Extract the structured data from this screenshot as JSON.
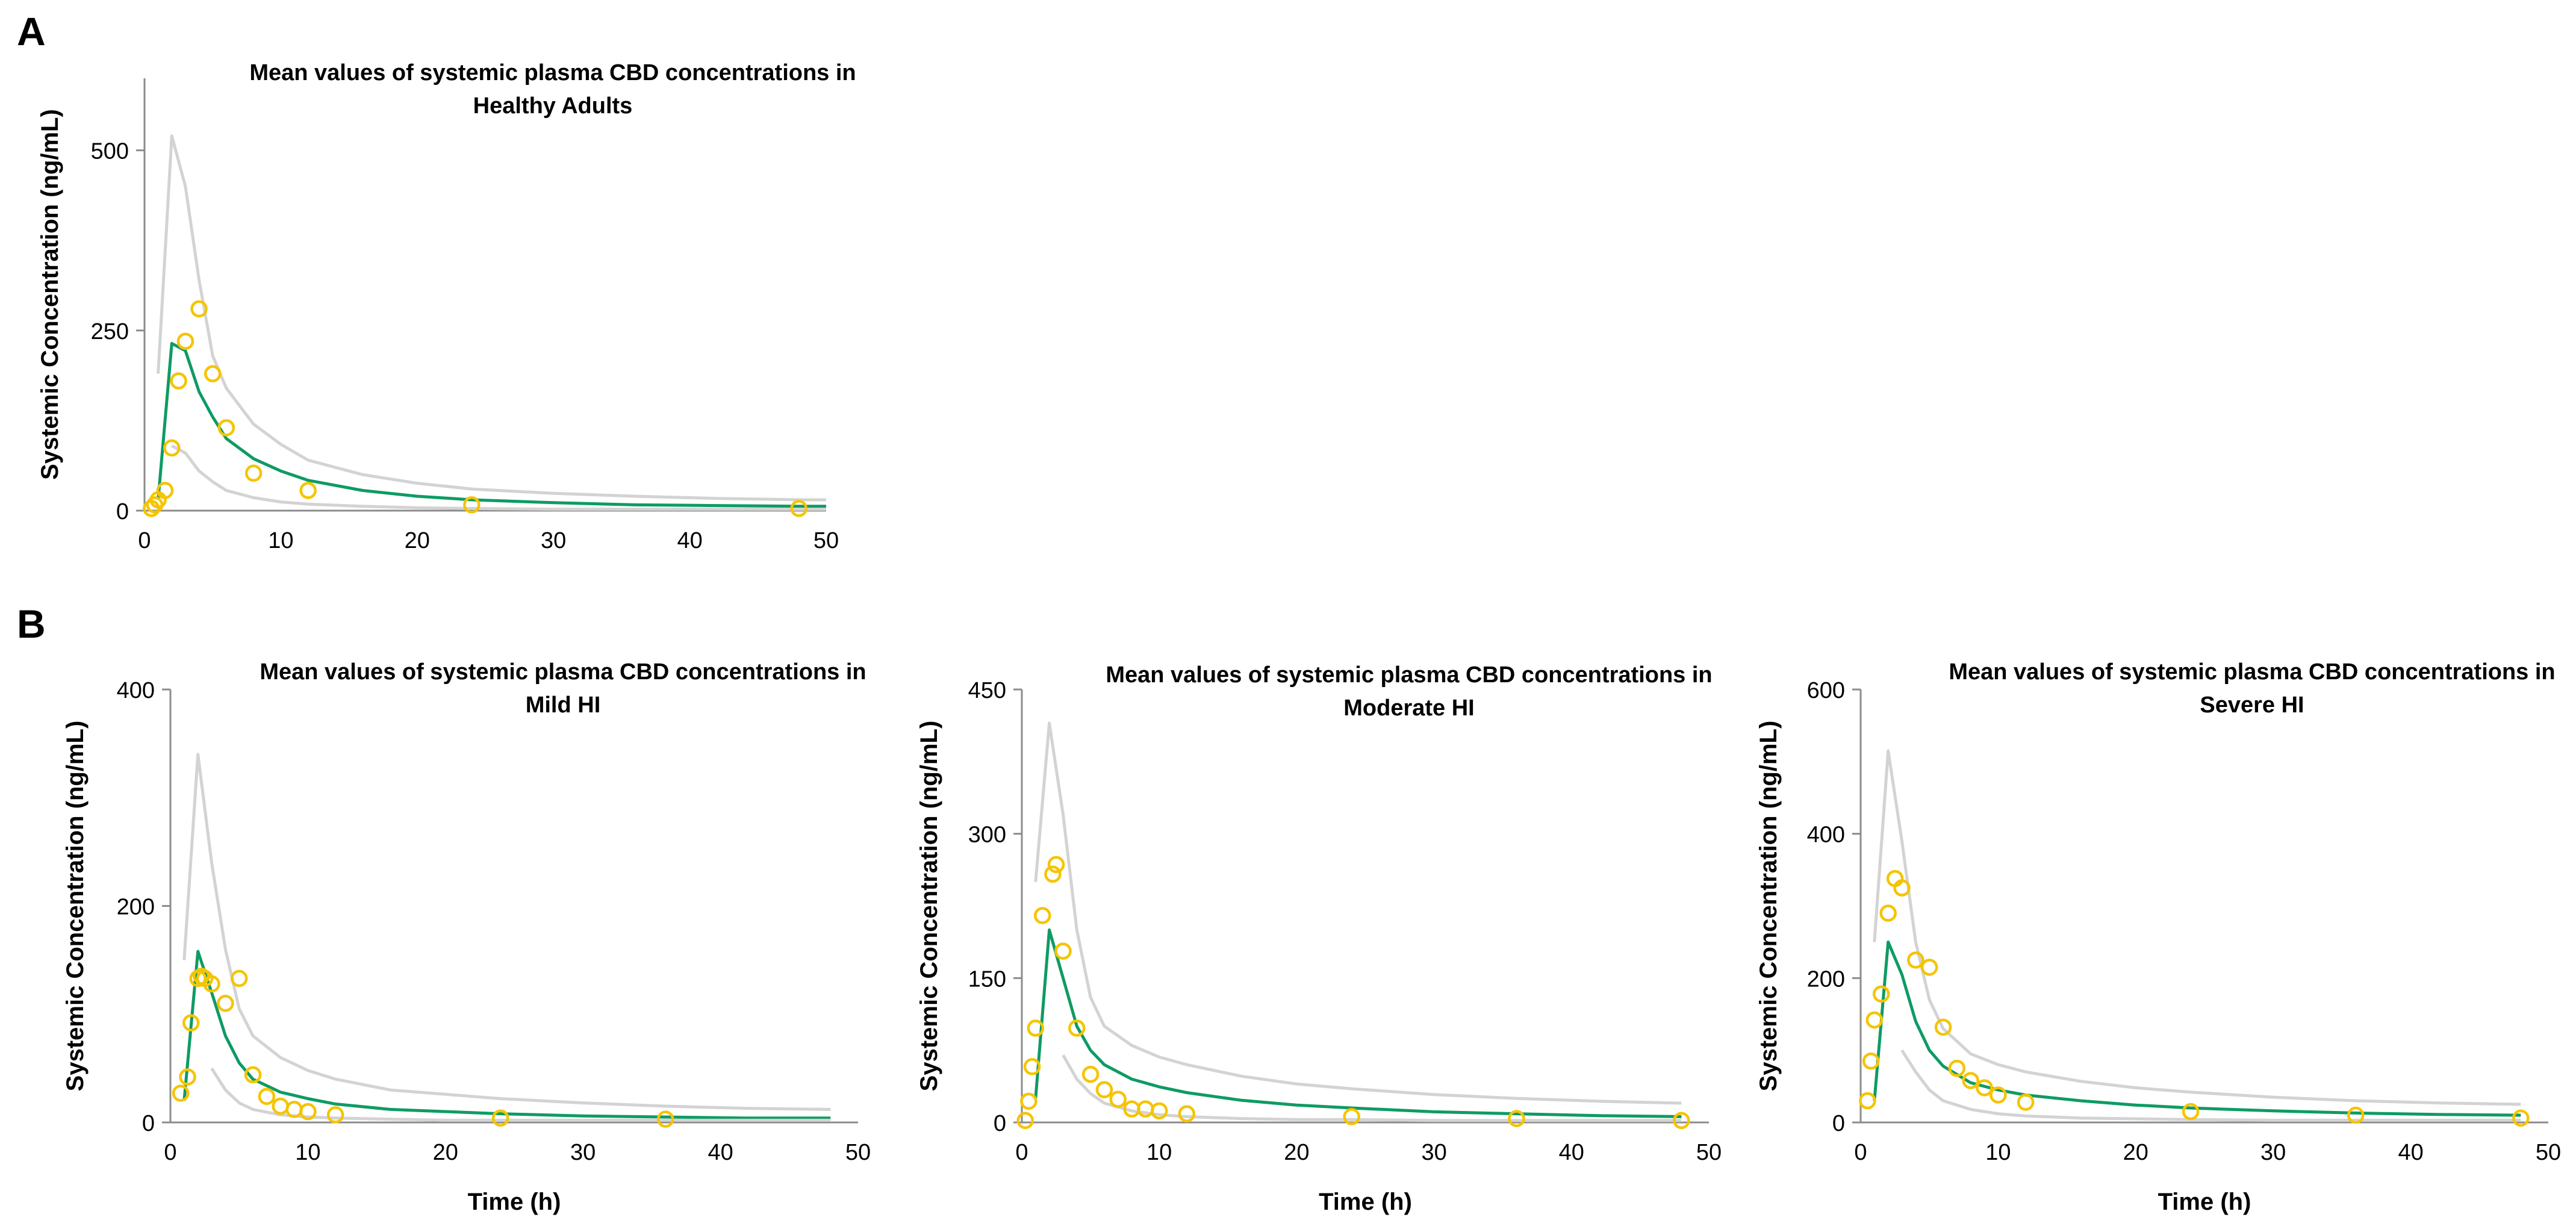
{
  "panel_labels": [
    "A",
    "B"
  ],
  "colors": {
    "bound": "#d3d3d3",
    "mean": "#0e9b64",
    "observed": "#f5c400",
    "axis": "#8c8c8c",
    "text": "#000000"
  },
  "chart_data": [
    {
      "type": "line",
      "panel": "A",
      "title_lines": [
        "Mean values of systemic plasma CBD concentrations in",
        "Healthy Adults"
      ],
      "xlabel": "",
      "ylabel": "Systemic Concentration (ng/mL)",
      "xlim": [
        0,
        50
      ],
      "ylim": [
        0,
        600
      ],
      "xticks": [
        0,
        10,
        20,
        30,
        40,
        50
      ],
      "yticks": [
        0,
        250,
        500
      ],
      "series": [
        {
          "name": "Upper bound",
          "style": "bound",
          "x": [
            1,
            2,
            3,
            4,
            5,
            6,
            8,
            10,
            12,
            16,
            20,
            24,
            30,
            36,
            42,
            48,
            50
          ],
          "y": [
            190,
            520,
            450,
            320,
            215,
            170,
            120,
            92,
            70,
            50,
            38,
            30,
            24,
            20,
            17,
            15,
            15
          ]
        },
        {
          "name": "Mean",
          "style": "mean",
          "x": [
            1,
            2,
            3,
            4,
            5,
            6,
            8,
            10,
            12,
            16,
            20,
            24,
            30,
            36,
            42,
            48,
            50
          ],
          "y": [
            15,
            232,
            222,
            165,
            130,
            100,
            72,
            55,
            42,
            28,
            20,
            15,
            11,
            8,
            7,
            6,
            6
          ]
        },
        {
          "name": "Lower bound",
          "style": "bound",
          "x": [
            2,
            3,
            4,
            5,
            6,
            8,
            10,
            12,
            16,
            20,
            24,
            30,
            36,
            42,
            48,
            50
          ],
          "y": [
            90,
            80,
            55,
            40,
            28,
            18,
            12,
            9,
            6,
            4,
            3,
            2,
            2,
            2,
            2,
            2
          ]
        },
        {
          "name": "Observed",
          "style": "observed",
          "x": [
            0.5,
            0.75,
            1,
            1.5,
            2,
            2.5,
            3,
            4,
            5,
            6,
            8,
            12,
            24,
            48
          ],
          "y": [
            3,
            8,
            15,
            28,
            87,
            180,
            235,
            280,
            190,
            115,
            52,
            28,
            8,
            3
          ]
        }
      ]
    },
    {
      "type": "line",
      "panel": "B",
      "title_lines": [
        "Mean values of systemic plasma CBD concentrations in",
        "Mild HI"
      ],
      "xlabel": "Time (h)",
      "ylabel": "Systemic Concentration (ng/mL)",
      "xlim": [
        0,
        50
      ],
      "ylim": [
        0,
        400
      ],
      "xticks": [
        0,
        10,
        20,
        30,
        40,
        50
      ],
      "yticks": [
        0,
        200,
        400
      ],
      "series": [
        {
          "name": "Upper bound",
          "style": "bound",
          "x": [
            1,
            2,
            3,
            4,
            5,
            6,
            8,
            10,
            12,
            16,
            20,
            24,
            30,
            36,
            42,
            48
          ],
          "y": [
            150,
            340,
            240,
            160,
            105,
            80,
            60,
            48,
            40,
            30,
            26,
            22,
            18,
            15,
            13,
            12
          ]
        },
        {
          "name": "Mean",
          "style": "mean",
          "x": [
            1,
            2,
            3,
            4,
            5,
            6,
            8,
            10,
            12,
            16,
            20,
            24,
            30,
            36,
            42,
            48
          ],
          "y": [
            20,
            158,
            120,
            80,
            55,
            40,
            28,
            22,
            17,
            12,
            10,
            8,
            6,
            5,
            4,
            4
          ]
        },
        {
          "name": "Lower bound",
          "style": "bound",
          "x": [
            3,
            4,
            5,
            6,
            8,
            10,
            12,
            16,
            20,
            24,
            30,
            36,
            42,
            48
          ],
          "y": [
            50,
            30,
            18,
            12,
            7,
            5,
            4,
            3,
            2,
            2,
            2,
            2,
            2,
            2
          ]
        },
        {
          "name": "Observed",
          "style": "observed",
          "x": [
            0.75,
            1.25,
            1.5,
            2,
            2.25,
            2.5,
            3,
            4,
            5,
            6,
            7,
            8,
            9,
            10,
            12,
            24,
            36
          ],
          "y": [
            27,
            42,
            92,
            133,
            135,
            133,
            128,
            110,
            133,
            44,
            24,
            15,
            12,
            10,
            7,
            4,
            3
          ]
        }
      ]
    },
    {
      "type": "line",
      "panel": "B",
      "title_lines": [
        "Mean values of systemic plasma CBD concentrations in",
        "Moderate HI"
      ],
      "xlabel": "Time (h)",
      "ylabel": "Systemic Concentration (ng/mL)",
      "xlim": [
        0,
        50
      ],
      "ylim": [
        0,
        450
      ],
      "xticks": [
        0,
        10,
        20,
        30,
        40,
        50
      ],
      "yticks": [
        0,
        150,
        300,
        450
      ],
      "series": [
        {
          "name": "Upper bound",
          "style": "bound",
          "x": [
            1,
            2,
            3,
            4,
            5,
            6,
            8,
            10,
            12,
            16,
            20,
            24,
            30,
            36,
            42,
            48
          ],
          "y": [
            250,
            415,
            320,
            200,
            130,
            100,
            80,
            68,
            60,
            48,
            40,
            35,
            29,
            25,
            22,
            20
          ]
        },
        {
          "name": "Mean",
          "style": "mean",
          "x": [
            1,
            2,
            3,
            4,
            5,
            6,
            8,
            10,
            12,
            16,
            20,
            24,
            30,
            36,
            42,
            48
          ],
          "y": [
            25,
            200,
            150,
            100,
            75,
            60,
            45,
            37,
            31,
            23,
            18,
            15,
            11,
            9,
            7,
            6
          ]
        },
        {
          "name": "Lower bound",
          "style": "bound",
          "x": [
            3,
            4,
            5,
            6,
            8,
            10,
            12,
            16,
            20,
            24,
            30,
            36,
            42,
            48
          ],
          "y": [
            70,
            45,
            30,
            20,
            12,
            8,
            6,
            4,
            3,
            3,
            2,
            2,
            2,
            2
          ]
        },
        {
          "name": "Observed",
          "style": "observed",
          "x": [
            0.25,
            0.5,
            0.75,
            1,
            1.5,
            2.25,
            2.5,
            3,
            4,
            5,
            6,
            7,
            8,
            9,
            10,
            12,
            24,
            36,
            48
          ],
          "y": [
            2,
            22,
            58,
            98,
            215,
            258,
            268,
            178,
            98,
            50,
            34,
            24,
            14,
            14,
            12,
            9,
            6,
            4,
            2
          ]
        }
      ]
    },
    {
      "type": "line",
      "panel": "B",
      "title_lines": [
        "Mean values of systemic plasma CBD concentrations in",
        "Severe HI"
      ],
      "xlabel": "Time (h)",
      "ylabel": "Systemic Concentration (ng/mL)",
      "xlim": [
        0,
        50
      ],
      "ylim": [
        0,
        600
      ],
      "xticks": [
        0,
        10,
        20,
        30,
        40,
        50
      ],
      "yticks": [
        0,
        200,
        400,
        600
      ],
      "series": [
        {
          "name": "Upper bound",
          "style": "bound",
          "x": [
            1,
            2,
            3,
            4,
            5,
            6,
            8,
            10,
            12,
            16,
            20,
            24,
            30,
            36,
            42,
            48
          ],
          "y": [
            250,
            515,
            390,
            250,
            170,
            130,
            95,
            80,
            70,
            57,
            48,
            42,
            35,
            30,
            27,
            25
          ]
        },
        {
          "name": "Mean",
          "style": "mean",
          "x": [
            1,
            2,
            3,
            4,
            5,
            6,
            8,
            10,
            12,
            16,
            20,
            24,
            30,
            36,
            42,
            48
          ],
          "y": [
            30,
            250,
            205,
            140,
            100,
            78,
            55,
            45,
            38,
            30,
            24,
            20,
            16,
            13,
            11,
            10
          ]
        },
        {
          "name": "Lower bound",
          "style": "bound",
          "x": [
            3,
            4,
            5,
            6,
            8,
            10,
            12,
            16,
            20,
            24,
            30,
            36,
            42,
            48
          ],
          "y": [
            100,
            70,
            45,
            30,
            18,
            12,
            9,
            6,
            5,
            4,
            3,
            3,
            3,
            3
          ]
        },
        {
          "name": "Observed",
          "style": "observed",
          "x": [
            0.5,
            0.75,
            1,
            1.5,
            2,
            2.5,
            3,
            4,
            5,
            6,
            7,
            8,
            9,
            10,
            12,
            24,
            36,
            48
          ],
          "y": [
            30,
            85,
            142,
            178,
            290,
            338,
            325,
            225,
            215,
            132,
            75,
            58,
            48,
            38,
            28,
            15,
            10,
            6
          ]
        }
      ]
    }
  ]
}
